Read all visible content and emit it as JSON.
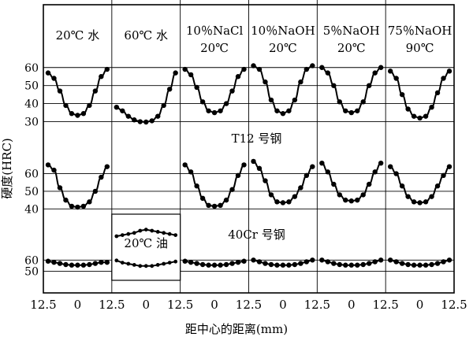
{
  "chart_data": {
    "type": "line",
    "ylabel": "硬度(HRC)",
    "xlabel": "距中心的距离(mm)",
    "x_ticks": [
      "12.5",
      "0",
      "12.5",
      "0",
      "12.5",
      "0",
      "12.5",
      "0",
      "12.5",
      "0",
      "12.5",
      "0",
      "12.5"
    ],
    "columns": [
      {
        "id": "c1",
        "label_lines": [
          "20℃ 水"
        ]
      },
      {
        "id": "c2",
        "label_lines": [
          "60℃ 水"
        ]
      },
      {
        "id": "c3",
        "label_lines": [
          "10％NaCl",
          "20℃"
        ]
      },
      {
        "id": "c4",
        "label_lines": [
          "10％NaOH",
          "20℃"
        ]
      },
      {
        "id": "c5",
        "label_lines": [
          "5％NaOH",
          "20℃"
        ]
      },
      {
        "id": "c6",
        "label_lines": [
          "75％NaOH",
          "90℃"
        ]
      }
    ],
    "panels": [
      {
        "id": "top",
        "y_ticks": [
          30,
          40,
          50,
          60
        ],
        "ylim": [
          25,
          66
        ],
        "label": "",
        "curves": [
          {
            "col": 0,
            "x": [
              -12.5,
              -10,
              -7.5,
              -5,
              -2.5,
              0,
              2.5,
              5,
              7.5,
              10,
              12.5
            ],
            "y": [
              57,
              54,
              47,
              39,
              34.5,
              33.5,
              34.5,
              39,
              47,
              55,
              59
            ]
          },
          {
            "col": 1,
            "x": [
              -12.5,
              -10,
              -7.5,
              -5,
              -2.5,
              0,
              2.5,
              5,
              7.5,
              10,
              12.5
            ],
            "y": [
              38,
              36,
              33,
              31,
              30,
              29.8,
              30.5,
              33,
              39,
              48,
              57
            ]
          },
          {
            "col": 2,
            "x": [
              -12.5,
              -10,
              -7.5,
              -5,
              -2.5,
              0,
              2.5,
              5,
              7.5,
              10,
              12.5
            ],
            "y": [
              59,
              56,
              49,
              41,
              36,
              35,
              36,
              40,
              47,
              55,
              59
            ]
          },
          {
            "col": 3,
            "x": [
              -12.5,
              -10,
              -7.5,
              -5,
              -2.5,
              0,
              2.5,
              5,
              7.5,
              10,
              12.5
            ],
            "y": [
              61,
              59,
              52,
              42,
              36,
              34.5,
              36,
              42,
              52,
              59,
              61
            ]
          },
          {
            "col": 4,
            "x": [
              -12.5,
              -10,
              -7.5,
              -5,
              -2.5,
              0,
              2.5,
              5,
              7.5,
              10,
              12.5
            ],
            "y": [
              60,
              57,
              50,
              41,
              36,
              35,
              36,
              41,
              50,
              57,
              60
            ]
          },
          {
            "col": 5,
            "x": [
              -12.5,
              -10,
              -7.5,
              -5,
              -2.5,
              0,
              2.5,
              5,
              7.5,
              10,
              12.5
            ],
            "y": [
              58,
              54,
              45,
              37,
              33,
              32,
              33,
              38,
              46,
              54,
              58
            ]
          }
        ]
      },
      {
        "id": "middle",
        "y_ticks": [
          40,
          50,
          60
        ],
        "ylim": [
          37,
          71
        ],
        "label": "T12 号钢",
        "curves": [
          {
            "col": 0,
            "x": [
              -12.5,
              -10,
              -7.5,
              -5,
              -2.5,
              0,
              2.5,
              5,
              7.5,
              10,
              12.5
            ],
            "y": [
              65,
              62,
              52,
              45,
              41.5,
              41,
              41.5,
              44,
              50,
              58,
              64
            ]
          },
          {
            "col": 2,
            "x": [
              -12.5,
              -10,
              -7.5,
              -5,
              -2.5,
              0,
              2.5,
              5,
              7.5,
              10,
              12.5
            ],
            "y": [
              65,
              61,
              53,
              46,
              42,
              41.5,
              42,
              45,
              51,
              59,
              65
            ]
          },
          {
            "col": 3,
            "x": [
              -12.5,
              -10,
              -7.5,
              -5,
              -2.5,
              0,
              2.5,
              5,
              7.5,
              10,
              12.5
            ],
            "y": [
              67,
              63,
              56,
              48,
              44,
              43.5,
              44,
              47,
              52,
              59,
              64
            ]
          },
          {
            "col": 4,
            "x": [
              -12.5,
              -10,
              -7.5,
              -5,
              -2.5,
              0,
              2.5,
              5,
              7.5,
              10,
              12.5
            ],
            "y": [
              66,
              61,
              54,
              48,
              45,
              44.5,
              45,
              48,
              54,
              61,
              66
            ]
          },
          {
            "col": 5,
            "x": [
              -12.5,
              -10,
              -7.5,
              -5,
              -2.5,
              0,
              2.5,
              5,
              7.5,
              10,
              12.5
            ],
            "y": [
              64,
              60,
              53,
              47,
              44,
              43.5,
              44,
              47,
              53,
              59,
              64
            ]
          }
        ]
      },
      {
        "id": "bottom",
        "y_ticks": [
          50,
          60
        ],
        "ylim": [
          42,
          70
        ],
        "label": "40Cr 号钢",
        "curves": [
          {
            "col": 0,
            "x": [
              -12.5,
              -10,
              -7.5,
              -5,
              -2.5,
              0,
              2.5,
              5,
              7.5,
              10,
              12.5
            ],
            "y": [
              59,
              58,
              57,
              56,
              55.5,
              55.5,
              55.5,
              56,
              57,
              58,
              58
            ]
          },
          {
            "col": 2,
            "x": [
              -12.5,
              -10,
              -7.5,
              -5,
              -2.5,
              0,
              2.5,
              5,
              7.5,
              10,
              12.5
            ],
            "y": [
              59,
              58,
              57,
              56,
              55.5,
              55.5,
              55.5,
              56,
              57,
              58,
              59
            ]
          },
          {
            "col": 3,
            "x": [
              -12.5,
              -10,
              -7.5,
              -5,
              -2.5,
              0,
              2.5,
              5,
              7.5,
              10,
              12.5
            ],
            "y": [
              60,
              58.5,
              57,
              56,
              55.5,
              55.5,
              55.5,
              56,
              57,
              58.5,
              60
            ]
          },
          {
            "col": 4,
            "x": [
              -12.5,
              -10,
              -7.5,
              -5,
              -2.5,
              0,
              2.5,
              5,
              7.5,
              10,
              12.5
            ],
            "y": [
              60,
              58.5,
              57,
              56,
              55.5,
              55.5,
              55.5,
              56,
              57,
              58.5,
              60
            ]
          },
          {
            "col": 5,
            "x": [
              -12.5,
              -10,
              -7.5,
              -5,
              -2.5,
              0,
              2.5,
              5,
              7.5,
              10,
              12.5
            ],
            "y": [
              60,
              58.5,
              57,
              56,
              55.5,
              55.5,
              55.5,
              56,
              57,
              58.5,
              60
            ]
          }
        ]
      }
    ],
    "inset": {
      "label": "20℃ 油",
      "y_ticks": [],
      "ylim": [
        40,
        70
      ],
      "curves": [
        {
          "series": "upper",
          "x": [
            -12.5,
            -10,
            -7.5,
            -5,
            -2.5,
            0,
            2.5,
            5,
            7.5,
            10,
            12.5
          ],
          "y": [
            60,
            60.5,
            61,
            61.5,
            62.5,
            63,
            62.5,
            62,
            61.5,
            61,
            60.5
          ]
        },
        {
          "series": "lower",
          "x": [
            -12.5,
            -10,
            -7.5,
            -5,
            -2.5,
            0,
            2.5,
            5,
            7.5,
            10,
            12.5
          ],
          "y": [
            49,
            48,
            47.5,
            47,
            46.5,
            46.5,
            46.5,
            47,
            47.5,
            48,
            48.5
          ]
        }
      ]
    }
  }
}
